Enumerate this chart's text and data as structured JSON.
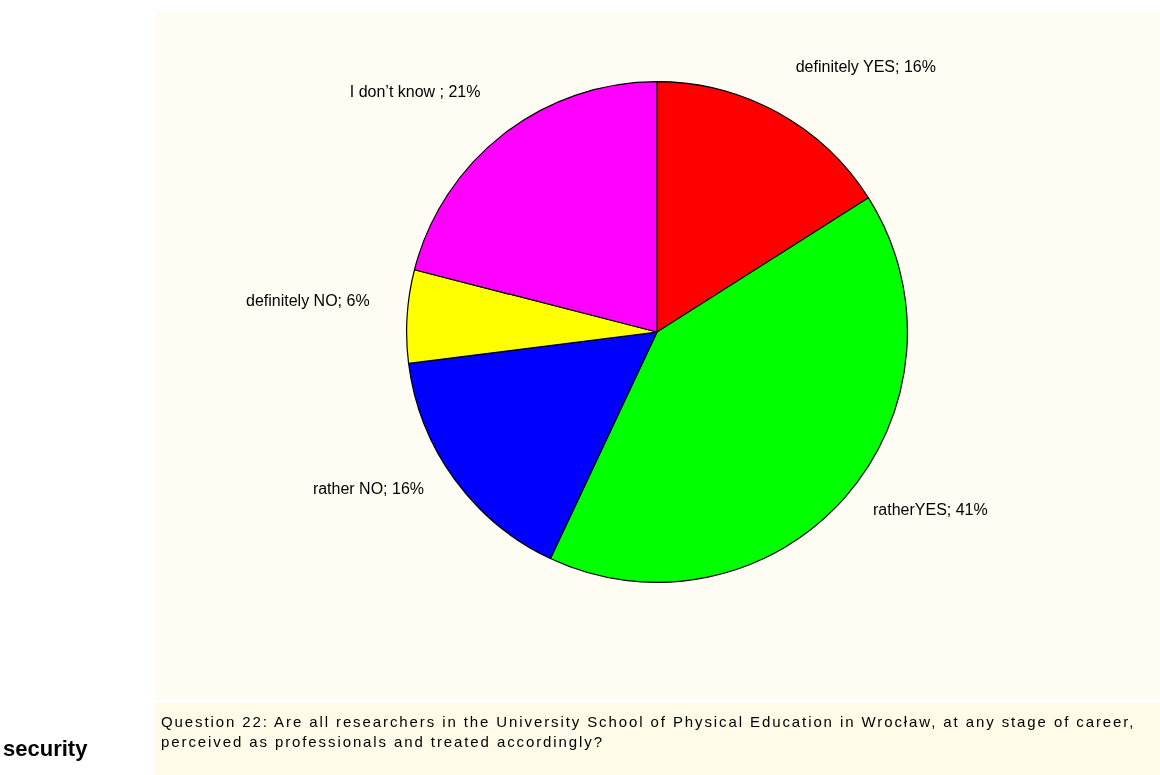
{
  "chart_data": {
    "type": "pie",
    "categories": [
      "definitely YES",
      "ratherYES",
      "rather NO",
      "definitely NO",
      "I don’t know"
    ],
    "values": [
      16,
      41,
      16,
      6,
      21
    ],
    "colors": [
      "#ff0000",
      "#00ff00",
      "#0000ff",
      "#ffff00",
      "#ff00ff"
    ],
    "value_labels": [
      "; 16%",
      "; 41%",
      "; 16%",
      "; 6%",
      " ; 21%"
    ],
    "legend": false,
    "annotations": [
      "Question 22: Are all researchers in the University School of Physical Education in Wrocław, at any stage of career, perceived as professionals and treated accordingly?",
      "security"
    ]
  }
}
